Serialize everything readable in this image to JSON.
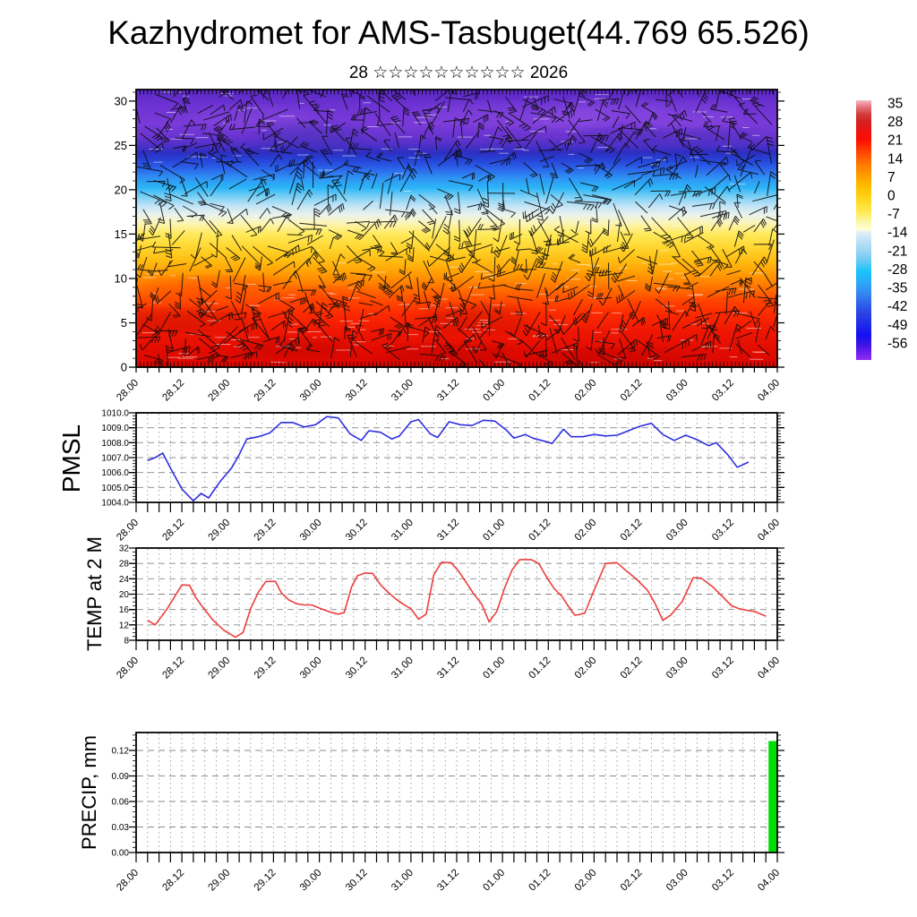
{
  "header": {
    "title": "Kazhydromet for AMS-Tasbuget(44.769 65.526)",
    "subtitle": "28 ☆☆☆☆☆☆☆☆☆☆ 2026"
  },
  "time_axis": {
    "tick_labels": [
      "28.00",
      "28.12",
      "29.00",
      "29.12",
      "30.00",
      "30.12",
      "31.00",
      "31.12",
      "01.00",
      "01.12",
      "02.00",
      "02.12",
      "03.00",
      "03.12",
      "04.00"
    ],
    "label_step_hours": 12,
    "tick_step_hours": 3,
    "total_hours": 168
  },
  "chart_data": [
    {
      "id": "cross_section",
      "type": "heatmap",
      "title": "time-height cross-section: temperature shading with wind barbs",
      "ylim": [
        0,
        31.3
      ],
      "ytick_labels": [
        "0",
        "5",
        "10",
        "15",
        "20",
        "25",
        "30"
      ],
      "color_bands": [
        [
          31.3,
          "#5b28c4"
        ],
        [
          29.5,
          "#6c32d2"
        ],
        [
          27.5,
          "#7a3ad9"
        ],
        [
          26.0,
          "#6a34d0"
        ],
        [
          25.0,
          "#4e30c8"
        ],
        [
          24.2,
          "#2e2ec0"
        ],
        [
          23.4,
          "#2742d6"
        ],
        [
          22.5,
          "#2a5fe8"
        ],
        [
          21.3,
          "#2f93f4"
        ],
        [
          20.2,
          "#2cb6f7"
        ],
        [
          19.2,
          "#7cd0f5"
        ],
        [
          18.2,
          "#c0e3f6"
        ],
        [
          17.2,
          "#eaf2ee"
        ],
        [
          16.2,
          "#fcf4b4"
        ],
        [
          15.0,
          "#ffea5c"
        ],
        [
          13.5,
          "#ffd62e"
        ],
        [
          12.0,
          "#ffbc12"
        ],
        [
          10.5,
          "#ff9b04"
        ],
        [
          9.0,
          "#ff7300"
        ],
        [
          7.5,
          "#ff4a00"
        ],
        [
          6.0,
          "#fb2a02"
        ],
        [
          4.0,
          "#ef1603"
        ],
        [
          2.0,
          "#e30c01"
        ],
        [
          0.0,
          "#d90701"
        ]
      ],
      "colorbar": {
        "tick_labels": [
          "35",
          "28",
          "21",
          "14",
          "7",
          "0",
          "-7",
          "-14",
          "-21",
          "-28",
          "-35",
          "-42",
          "-49",
          "-56"
        ],
        "value_top": 36,
        "value_bottom": -62.5,
        "stops": [
          [
            36,
            "#f6bcc0"
          ],
          [
            33.5,
            "#e4737c"
          ],
          [
            30.5,
            "#cf3a3a"
          ],
          [
            28,
            "#d42222"
          ],
          [
            25,
            "#ea1414"
          ],
          [
            21,
            "#fb0e00"
          ],
          [
            17.5,
            "#ff3800"
          ],
          [
            14,
            "#ff5f00"
          ],
          [
            10.5,
            "#ff8400"
          ],
          [
            7,
            "#ffa000"
          ],
          [
            3.5,
            "#ffbc00"
          ],
          [
            0,
            "#ffcf10"
          ],
          [
            -3.5,
            "#ffdf33"
          ],
          [
            -7,
            "#ffec5e"
          ],
          [
            -10,
            "#fbf7a8"
          ],
          [
            -13,
            "#ffffd6"
          ],
          [
            -14,
            "#e2f0f8"
          ],
          [
            -17,
            "#c2e2f4"
          ],
          [
            -21,
            "#9ed6f2"
          ],
          [
            -25,
            "#66c9f4"
          ],
          [
            -29,
            "#17c5fb"
          ],
          [
            -33,
            "#2ba9f8"
          ],
          [
            -37,
            "#3489f2"
          ],
          [
            -41,
            "#2f64ea"
          ],
          [
            -45,
            "#2a42e4"
          ],
          [
            -49,
            "#1f2ae8"
          ],
          [
            -53,
            "#140ff2"
          ],
          [
            -56.5,
            "#3a14e4"
          ],
          [
            -59.5,
            "#6a1cee"
          ],
          [
            -62.5,
            "#9030f2"
          ]
        ]
      }
    },
    {
      "id": "pmsl",
      "type": "line",
      "label": "PMSL",
      "line_color": "#2f2fe0",
      "ylim": [
        1004,
        1010
      ],
      "ytick_labels": [
        "1004.0",
        "1005.0",
        "1006.0",
        "1007.0",
        "1008.0",
        "1009.0",
        "1010.0"
      ],
      "grid_values": [
        1005,
        1006,
        1007,
        1008,
        1009
      ],
      "minor_tick": 0.2,
      "major_tick": 1,
      "points_hour_value": [
        [
          3,
          1006.8
        ],
        [
          5,
          1007.0
        ],
        [
          7,
          1007.3
        ],
        [
          9,
          1006.3
        ],
        [
          12,
          1004.9
        ],
        [
          15,
          1004.1
        ],
        [
          17,
          1004.6
        ],
        [
          19,
          1004.3
        ],
        [
          22,
          1005.4
        ],
        [
          25,
          1006.3
        ],
        [
          27,
          1007.2
        ],
        [
          29,
          1008.25
        ],
        [
          32,
          1008.4
        ],
        [
          35,
          1008.65
        ],
        [
          38,
          1009.35
        ],
        [
          41,
          1009.35
        ],
        [
          44,
          1009.05
        ],
        [
          47,
          1009.2
        ],
        [
          50,
          1009.75
        ],
        [
          53,
          1009.65
        ],
        [
          56,
          1008.6
        ],
        [
          59,
          1008.15
        ],
        [
          61,
          1008.8
        ],
        [
          64,
          1008.7
        ],
        [
          67,
          1008.25
        ],
        [
          69,
          1008.45
        ],
        [
          72,
          1009.4
        ],
        [
          74,
          1009.55
        ],
        [
          77,
          1008.6
        ],
        [
          79,
          1008.35
        ],
        [
          82,
          1009.4
        ],
        [
          85,
          1009.2
        ],
        [
          88,
          1009.15
        ],
        [
          91,
          1009.5
        ],
        [
          94,
          1009.45
        ],
        [
          97,
          1008.85
        ],
        [
          99,
          1008.3
        ],
        [
          102,
          1008.55
        ],
        [
          104,
          1008.3
        ],
        [
          107,
          1008.1
        ],
        [
          109,
          1007.95
        ],
        [
          112,
          1008.9
        ],
        [
          114,
          1008.4
        ],
        [
          117,
          1008.4
        ],
        [
          120,
          1008.55
        ],
        [
          123,
          1008.45
        ],
        [
          126,
          1008.5
        ],
        [
          129,
          1008.8
        ],
        [
          132,
          1009.1
        ],
        [
          135,
          1009.3
        ],
        [
          138,
          1008.55
        ],
        [
          141,
          1008.15
        ],
        [
          144,
          1008.5
        ],
        [
          147,
          1008.2
        ],
        [
          150,
          1007.8
        ],
        [
          152,
          1008.0
        ],
        [
          155,
          1007.2
        ],
        [
          157.5,
          1006.35
        ],
        [
          160.5,
          1006.7
        ]
      ]
    },
    {
      "id": "temp2m",
      "type": "line",
      "label": "TEMP at 2 M",
      "line_color": "#ef3d3d",
      "ylim": [
        8,
        32
      ],
      "ytick_labels": [
        "8",
        "12",
        "16",
        "20",
        "24",
        "28",
        "32"
      ],
      "grid_values": [
        12,
        16,
        20,
        24,
        28
      ],
      "minor_tick": 1,
      "major_tick": 4,
      "points_hour_value": [
        [
          3,
          13.2
        ],
        [
          5,
          12.0
        ],
        [
          8,
          16.0
        ],
        [
          10,
          19.2
        ],
        [
          12,
          22.4
        ],
        [
          14,
          22.3
        ],
        [
          15.5,
          19.3
        ],
        [
          17,
          17.2
        ],
        [
          20,
          13.4
        ],
        [
          23,
          10.6
        ],
        [
          26,
          8.8
        ],
        [
          28,
          10.0
        ],
        [
          30,
          16.2
        ],
        [
          32,
          20.5
        ],
        [
          34,
          23.3
        ],
        [
          36.5,
          23.3
        ],
        [
          38,
          20.4
        ],
        [
          40,
          18.5
        ],
        [
          42,
          17.5
        ],
        [
          44,
          17.2
        ],
        [
          46,
          17.2
        ],
        [
          48,
          16.4
        ],
        [
          51,
          15.3
        ],
        [
          53,
          14.8
        ],
        [
          54.5,
          15.2
        ],
        [
          56.5,
          22.0
        ],
        [
          58,
          24.8
        ],
        [
          60,
          25.5
        ],
        [
          62,
          25.4
        ],
        [
          64,
          22.5
        ],
        [
          66,
          20.5
        ],
        [
          68,
          18.8
        ],
        [
          70,
          17.4
        ],
        [
          72,
          16.2
        ],
        [
          74,
          13.5
        ],
        [
          76,
          14.8
        ],
        [
          78,
          25.0
        ],
        [
          80,
          28.3
        ],
        [
          82.5,
          28.2
        ],
        [
          84.5,
          26.0
        ],
        [
          86.5,
          23.0
        ],
        [
          88.5,
          20.0
        ],
        [
          90.5,
          17.5
        ],
        [
          92.5,
          12.8
        ],
        [
          94.5,
          15.5
        ],
        [
          96.5,
          21.5
        ],
        [
          98.5,
          26.3
        ],
        [
          100.5,
          29.0
        ],
        [
          103.5,
          29.0
        ],
        [
          105.5,
          28.0
        ],
        [
          107.5,
          24.5
        ],
        [
          109.5,
          21.5
        ],
        [
          111.5,
          19.5
        ],
        [
          113.5,
          16.5
        ],
        [
          115,
          14.5
        ],
        [
          117.5,
          15.0
        ],
        [
          120,
          21.0
        ],
        [
          123,
          28.0
        ],
        [
          126,
          28.2
        ],
        [
          128.5,
          26.0
        ],
        [
          131,
          24.0
        ],
        [
          134,
          21.0
        ],
        [
          136,
          17.5
        ],
        [
          138,
          13.2
        ],
        [
          140,
          14.5
        ],
        [
          143,
          18.0
        ],
        [
          146,
          24.3
        ],
        [
          148,
          24.2
        ],
        [
          151,
          22.0
        ],
        [
          153,
          20.0
        ],
        [
          154.5,
          18.5
        ],
        [
          156,
          17.0
        ],
        [
          158,
          16.2
        ],
        [
          160,
          15.8
        ],
        [
          162,
          15.5
        ],
        [
          165,
          14.3
        ]
      ]
    },
    {
      "id": "precip",
      "type": "bar",
      "label": "PRECIP, mm",
      "bar_color": "#00dd00",
      "ylim": [
        0,
        0.141
      ],
      "ytick_labels": [
        "0.00",
        "0.03",
        "0.06",
        "0.09",
        "0.12"
      ],
      "grid_values": [
        0.03,
        0.06,
        0.09,
        0.12
      ],
      "minor_tick": 0.006,
      "major_tick": 0.03,
      "bars_hour_range_value": [
        [
          165.7,
          168,
          0.131
        ]
      ]
    }
  ]
}
